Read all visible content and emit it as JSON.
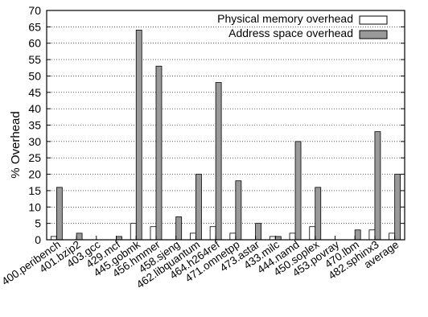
{
  "chart_data": {
    "type": "bar",
    "title": "",
    "xlabel": "",
    "ylabel": "% Overhead",
    "ylim": [
      0,
      70
    ],
    "yticks": [
      0,
      5,
      10,
      15,
      20,
      25,
      30,
      35,
      40,
      45,
      50,
      55,
      60,
      65,
      70
    ],
    "grid": "horizontal dotted",
    "legend_position": "top-right",
    "categories": [
      "400.peribench",
      "401.bzip2",
      "403.gcc",
      "429.mcf",
      "445.gobmk",
      "456.hmmer",
      "458.sjeng",
      "462.libquantum",
      "464.h264ref",
      "471.omnetpp",
      "473.astar",
      "433.milc",
      "444.namd",
      "450.soplex",
      "453.povray",
      "470.lbm",
      "482.sphinx3",
      "average"
    ],
    "series": [
      {
        "name": "Physical memory overhead",
        "color": "#ffffff",
        "values": [
          1,
          0,
          0,
          0,
          5,
          4,
          0,
          2,
          4,
          2,
          0,
          1,
          2,
          4,
          0,
          0,
          3,
          2
        ]
      },
      {
        "name": "Address space overhead",
        "color": "#999999",
        "values": [
          16,
          2,
          0,
          1,
          64,
          53,
          7,
          20,
          48,
          18,
          5,
          1,
          30,
          16,
          0,
          3,
          33,
          20
        ]
      }
    ]
  }
}
